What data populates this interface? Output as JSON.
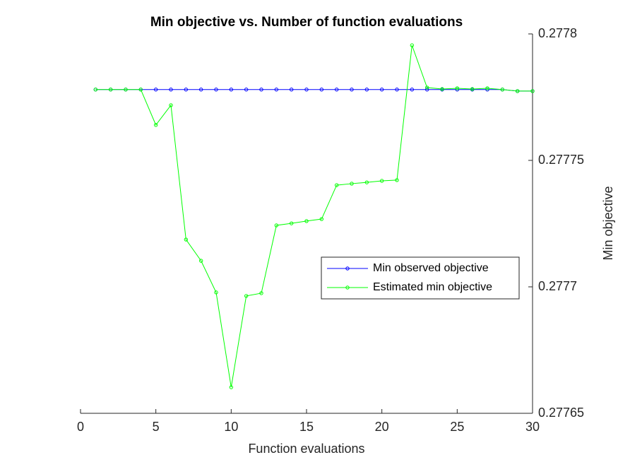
{
  "chart_data": {
    "type": "line",
    "title": "Min objective vs. Number of function evaluations",
    "x_label": "Function evaluations",
    "y_label": "Min objective",
    "x": [
      1,
      2,
      3,
      4,
      5,
      6,
      7,
      8,
      9,
      10,
      11,
      12,
      13,
      14,
      15,
      16,
      17,
      18,
      19,
      20,
      21,
      22,
      23,
      24,
      25,
      26,
      27,
      28,
      29,
      30
    ],
    "series": [
      {
        "name": "Min observed objective",
        "color": "#0000ff",
        "values": [
          0.277778,
          0.277778,
          0.277778,
          0.277778,
          0.277778,
          0.277778,
          0.277778,
          0.277778,
          0.277778,
          0.277778,
          0.277778,
          0.277778,
          0.277778,
          0.277778,
          0.277778,
          0.277778,
          0.277778,
          0.277778,
          0.277778,
          0.277778,
          0.277778,
          0.277778,
          0.277778,
          0.277778,
          0.277778,
          0.277778,
          0.277778,
          0.277778,
          0.2777774,
          0.2777774
        ]
      },
      {
        "name": "Estimated min objective",
        "color": "#00ff00",
        "values": [
          0.277778,
          0.277778,
          0.277778,
          0.277778,
          0.277764,
          0.2777718,
          0.2777187,
          0.2777103,
          0.2776978,
          0.2776603,
          0.2776964,
          0.2776975,
          0.2777243,
          0.2777251,
          0.277726,
          0.2777268,
          0.2777402,
          0.2777408,
          0.2777413,
          0.2777419,
          0.2777422,
          0.2777955,
          0.2777788,
          0.2777782,
          0.2777785,
          0.2777782,
          0.2777785,
          0.277778,
          0.2777774,
          0.2777774
        ]
      }
    ],
    "xlim": [
      0,
      30
    ],
    "xticks": [
      0,
      5,
      10,
      15,
      20,
      25,
      30
    ],
    "ylim": [
      0.27765,
      0.2778
    ],
    "yticks": [
      0.27765,
      0.2777,
      0.27775,
      0.2778
    ],
    "y_axis_location": "right",
    "grid": false,
    "legend_position": "right"
  }
}
